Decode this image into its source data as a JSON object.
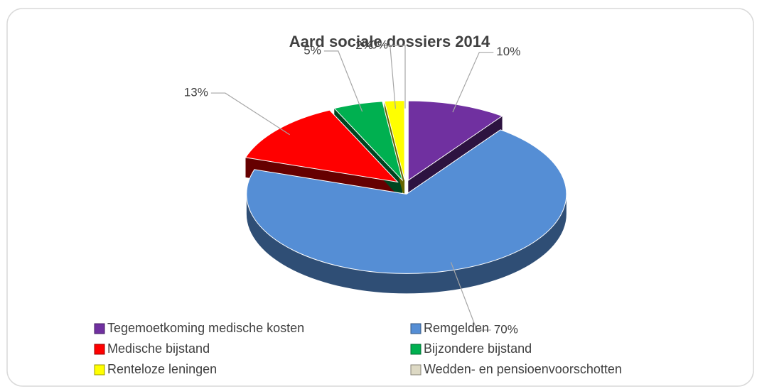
{
  "chart_data": {
    "type": "pie",
    "title": "Aard sociale dossiers 2014",
    "categories": [
      "Tegemoetkoming medische kosten",
      "Remgelden",
      "Medische bijstand",
      "Bijzondere bijstand",
      "Renteloze leningen",
      "Wedden- en pensioenvoorschotten"
    ],
    "values": [
      10,
      70,
      13,
      5,
      2,
      0
    ],
    "value_labels": [
      "10%",
      "70%",
      "13%",
      "5%",
      "2%",
      "0%"
    ],
    "colors": [
      "#7030a0",
      "#558ed5",
      "#ff0000",
      "#00b050",
      "#ffff00",
      "#ddd9c4"
    ],
    "legend": "bottom"
  }
}
